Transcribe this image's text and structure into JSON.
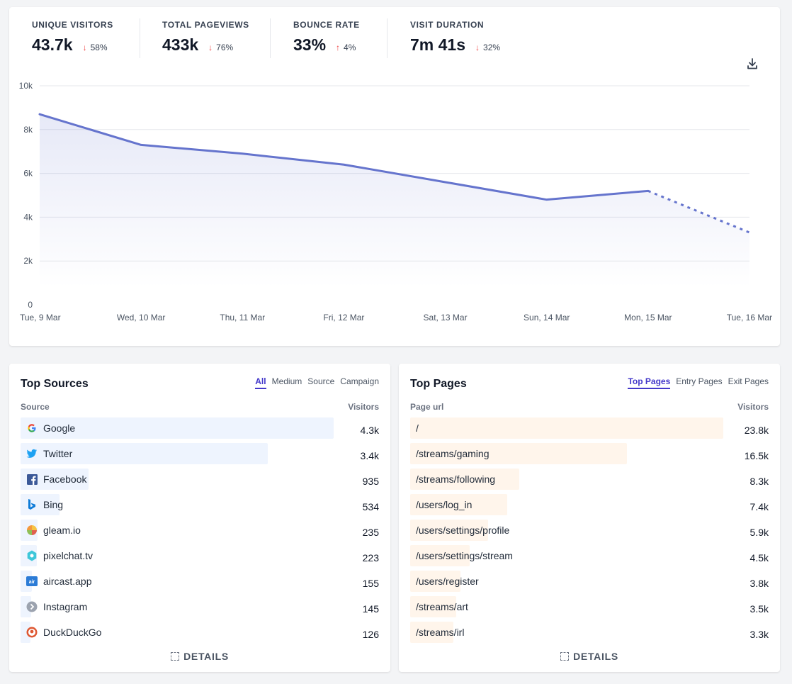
{
  "stats": [
    {
      "label": "UNIQUE VISITORS",
      "value": "43.7k",
      "change": "58%",
      "direction": "down"
    },
    {
      "label": "TOTAL PAGEVIEWS",
      "value": "433k",
      "change": "76%",
      "direction": "down"
    },
    {
      "label": "BOUNCE RATE",
      "value": "33%",
      "change": "4%",
      "direction": "up"
    },
    {
      "label": "VISIT DURATION",
      "value": "7m 41s",
      "change": "32%",
      "direction": "down"
    }
  ],
  "colors": {
    "line": "#6574cd",
    "down": "#ef4444",
    "up": "#ef4444",
    "accent": "#4338ca",
    "source_bar": "#eef4fe",
    "page_bar": "#fff5eb"
  },
  "chart_data": {
    "type": "line",
    "x": [
      "Tue, 9 Mar",
      "Wed, 10 Mar",
      "Thu, 11 Mar",
      "Fri, 12 Mar",
      "Sat, 13 Mar",
      "Sun, 14 Mar",
      "Mon, 15 Mar",
      "Tue, 16 Mar"
    ],
    "series": [
      {
        "values": [
          8700,
          7300,
          6900,
          6400,
          5600,
          4800,
          5200,
          3300
        ]
      }
    ],
    "y_ticks": [
      "0",
      "2k",
      "4k",
      "6k",
      "8k",
      "10k"
    ],
    "ylim": [
      0,
      10000
    ],
    "last_segment_dashed": true,
    "grid": true
  },
  "sources": {
    "title": "Top Sources",
    "tabs": [
      "All",
      "Medium",
      "Source",
      "Campaign"
    ],
    "active_tab": "All",
    "col_left": "Source",
    "col_right": "Visitors",
    "items": [
      {
        "label": "Google",
        "value": "4.3k",
        "count": 4300,
        "icon": "google-icon"
      },
      {
        "label": "Twitter",
        "value": "3.4k",
        "count": 3400,
        "icon": "twitter-icon"
      },
      {
        "label": "Facebook",
        "value": "935",
        "count": 935,
        "icon": "facebook-icon"
      },
      {
        "label": "Bing",
        "value": "534",
        "count": 534,
        "icon": "bing-icon"
      },
      {
        "label": "gleam.io",
        "value": "235",
        "count": 235,
        "icon": "gleam-icon"
      },
      {
        "label": "pixelchat.tv",
        "value": "223",
        "count": 223,
        "icon": "pixelchat-icon"
      },
      {
        "label": "aircast.app",
        "value": "155",
        "count": 155,
        "icon": "aircast-icon"
      },
      {
        "label": "Instagram",
        "value": "145",
        "count": 145,
        "icon": "instagram-icon"
      },
      {
        "label": "DuckDuckGo",
        "value": "126",
        "count": 126,
        "icon": "duckduckgo-icon"
      }
    ],
    "details": "DETAILS"
  },
  "pages": {
    "title": "Top Pages",
    "tabs": [
      "Top Pages",
      "Entry Pages",
      "Exit Pages"
    ],
    "active_tab": "Top Pages",
    "col_left": "Page url",
    "col_right": "Visitors",
    "items": [
      {
        "label": "/",
        "value": "23.8k",
        "count": 23800
      },
      {
        "label": "/streams/gaming",
        "value": "16.5k",
        "count": 16500
      },
      {
        "label": "/streams/following",
        "value": "8.3k",
        "count": 8300
      },
      {
        "label": "/users/log_in",
        "value": "7.4k",
        "count": 7400
      },
      {
        "label": "/users/settings/profile",
        "value": "5.9k",
        "count": 5900
      },
      {
        "label": "/users/settings/stream",
        "value": "4.5k",
        "count": 4500
      },
      {
        "label": "/users/register",
        "value": "3.8k",
        "count": 3800
      },
      {
        "label": "/streams/art",
        "value": "3.5k",
        "count": 3500
      },
      {
        "label": "/streams/irl",
        "value": "3.3k",
        "count": 3300
      }
    ],
    "details": "DETAILS"
  }
}
